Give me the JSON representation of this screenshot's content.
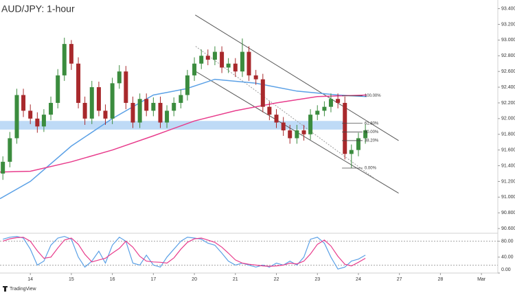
{
  "chart_data": [
    {
      "type": "candlestick",
      "title": "AUD/JPY: 1-hour",
      "brand": "TradingView",
      "up_color": "#3b8c3e",
      "down_color": "#a8292c",
      "x": [
        0.33,
        0.5,
        0.67,
        0.83,
        1.0,
        1.17,
        1.33,
        1.5,
        1.67,
        1.83,
        2.0,
        2.17,
        2.33,
        2.5,
        2.67,
        2.83,
        3.0,
        3.17,
        3.33,
        3.5,
        3.67,
        3.83,
        4.0,
        4.17,
        4.33,
        4.5,
        4.67,
        4.83,
        5.0,
        5.17,
        5.33,
        5.5,
        5.67,
        5.83,
        6.0,
        6.17,
        6.33,
        6.5,
        6.67,
        6.83,
        7.0,
        7.17,
        7.33,
        7.5,
        7.67,
        7.83,
        8.0,
        8.17,
        8.33,
        8.5,
        8.67,
        8.83,
        9.0,
        9.17
      ],
      "open": [
        91.3,
        91.45,
        91.75,
        92.3,
        92.1,
        92.0,
        91.9,
        92.05,
        92.2,
        92.55,
        92.95,
        92.7,
        92.2,
        92.0,
        92.4,
        92.1,
        92.0,
        92.45,
        92.6,
        92.2,
        91.95,
        92.25,
        92.1,
        92.2,
        91.95,
        92.1,
        92.2,
        92.3,
        92.55,
        92.7,
        92.8,
        92.75,
        92.85,
        92.65,
        92.7,
        92.6,
        92.85,
        92.55,
        92.5,
        92.15,
        92.05,
        91.95,
        91.85,
        91.75,
        91.85,
        91.8,
        92.05,
        92.1,
        92.15,
        92.25,
        92.2,
        91.55,
        91.6,
        91.75
      ],
      "high": [
        91.52,
        91.83,
        92.38,
        92.38,
        92.18,
        92.08,
        92.12,
        92.28,
        92.63,
        93.03,
        93.0,
        92.78,
        92.28,
        92.48,
        92.47,
        92.18,
        92.52,
        92.68,
        92.67,
        92.28,
        92.32,
        92.32,
        92.27,
        92.28,
        92.17,
        92.27,
        92.37,
        92.62,
        92.78,
        92.88,
        92.88,
        92.92,
        92.92,
        92.77,
        92.77,
        93.02,
        92.92,
        92.62,
        92.57,
        92.22,
        92.12,
        92.02,
        91.92,
        91.92,
        91.92,
        92.12,
        92.17,
        92.22,
        92.32,
        92.32,
        92.28,
        91.67,
        91.82,
        91.93
      ],
      "low": [
        91.22,
        91.38,
        91.68,
        92.02,
        91.93,
        91.82,
        91.83,
        91.98,
        92.13,
        92.48,
        92.62,
        92.13,
        91.92,
        91.93,
        92.03,
        91.92,
        91.93,
        92.38,
        92.12,
        91.88,
        91.88,
        92.03,
        92.03,
        91.88,
        91.88,
        92.03,
        92.13,
        92.23,
        92.48,
        92.63,
        92.68,
        92.68,
        92.58,
        92.58,
        92.53,
        92.53,
        92.48,
        92.43,
        92.08,
        91.98,
        91.88,
        91.78,
        91.68,
        91.68,
        91.72,
        91.73,
        91.98,
        92.03,
        92.08,
        92.13,
        91.48,
        91.37,
        91.52,
        91.68
      ],
      "close": [
        91.45,
        91.75,
        92.3,
        92.1,
        92.0,
        91.9,
        92.05,
        92.2,
        92.55,
        92.95,
        92.7,
        92.2,
        92.0,
        92.4,
        92.1,
        92.0,
        92.45,
        92.6,
        92.2,
        91.95,
        92.25,
        92.1,
        92.2,
        91.95,
        92.1,
        92.2,
        92.3,
        92.55,
        92.7,
        92.8,
        92.75,
        92.85,
        92.65,
        92.7,
        92.6,
        92.85,
        92.55,
        92.5,
        92.15,
        92.05,
        91.95,
        91.85,
        91.75,
        91.85,
        91.8,
        92.05,
        92.1,
        92.15,
        92.25,
        92.2,
        91.55,
        91.6,
        91.75,
        91.85
      ],
      "series": [
        {
          "color": "#5aa0e6",
          "x": [
            0.26,
            1.0,
            2.0,
            3.0,
            4.0,
            4.8,
            5.5,
            6.5,
            7.5,
            8.5,
            9.2
          ],
          "values": [
            90.98,
            91.2,
            91.65,
            92.0,
            92.3,
            92.38,
            92.5,
            92.45,
            92.35,
            92.3,
            92.28
          ]
        },
        {
          "color": "#e83c8c",
          "x": [
            0.26,
            1.0,
            2.0,
            3.0,
            4.0,
            5.0,
            6.0,
            7.0,
            8.0,
            9.2
          ],
          "values": [
            91.32,
            91.33,
            91.45,
            91.6,
            91.78,
            91.97,
            92.1,
            92.2,
            92.28,
            92.3
          ]
        }
      ],
      "channel": [
        {
          "x": [
            5.02,
            9.98
          ],
          "values": [
            93.32,
            91.72
          ]
        },
        {
          "x": [
            5.0,
            9.98
          ],
          "values": [
            92.61,
            91.05
          ]
        }
      ],
      "midline": {
        "x": [
          5.03,
          9.44
        ],
        "values": [
          92.92,
          91.22
        ]
      },
      "zone": {
        "x": [
          0.26,
          8.72
        ],
        "values": [
          91.86,
          91.97
        ],
        "color": "#b3d4f5"
      },
      "fib_x": [
        8.6,
        9.1
      ],
      "fib_levels": [
        {
          "value": 92.29,
          "label": "100.00%"
        },
        {
          "value": 91.94,
          "label": "61.80%"
        },
        {
          "value": 91.83,
          "label": "50.00%"
        },
        {
          "value": 91.72,
          "label": "38.20%"
        },
        {
          "value": 91.37,
          "label": "0.00%"
        }
      ],
      "xlim": [
        0.26,
        12.4
      ],
      "xticks": [
        {
          "value": 1,
          "label": "14"
        },
        {
          "value": 2,
          "label": "15"
        },
        {
          "value": 3,
          "label": "16"
        },
        {
          "value": 4,
          "label": "17"
        },
        {
          "value": 5,
          "label": "20"
        },
        {
          "value": 6,
          "label": "21"
        },
        {
          "value": 7,
          "label": "22"
        },
        {
          "value": 8,
          "label": "23"
        },
        {
          "value": 9,
          "label": "24"
        },
        {
          "value": 10,
          "label": "27"
        },
        {
          "value": 11,
          "label": "28"
        },
        {
          "value": 12,
          "label": "Mar"
        }
      ],
      "ylim": [
        90.54,
        93.51
      ],
      "yticks": [
        {
          "value": 93.4,
          "label": "93.400"
        },
        {
          "value": 93.2,
          "label": "93.200"
        },
        {
          "value": 93.0,
          "label": "93.000"
        },
        {
          "value": 92.8,
          "label": "92.800"
        },
        {
          "value": 92.6,
          "label": "92.600"
        },
        {
          "value": 92.4,
          "label": "92.400"
        },
        {
          "value": 92.2,
          "label": "92.200"
        },
        {
          "value": 92.0,
          "label": "92.000"
        },
        {
          "value": 91.8,
          "label": "91.800"
        },
        {
          "value": 91.6,
          "label": "91.600"
        },
        {
          "value": 91.4,
          "label": "91.400"
        },
        {
          "value": 91.2,
          "label": "91.200"
        },
        {
          "value": 91.0,
          "label": "91.000"
        },
        {
          "value": 90.8,
          "label": "90.800"
        },
        {
          "value": 90.6,
          "label": "90.600"
        }
      ]
    },
    {
      "type": "line",
      "x": [
        0.33,
        0.5,
        0.67,
        0.83,
        1.0,
        1.17,
        1.33,
        1.5,
        1.67,
        1.83,
        2.0,
        2.17,
        2.33,
        2.5,
        2.67,
        2.83,
        3.0,
        3.17,
        3.33,
        3.5,
        3.67,
        3.83,
        4.0,
        4.17,
        4.33,
        4.5,
        4.67,
        4.83,
        5.0,
        5.17,
        5.33,
        5.5,
        5.67,
        5.83,
        6.0,
        6.17,
        6.33,
        6.5,
        6.67,
        6.83,
        7.0,
        7.17,
        7.33,
        7.5,
        7.67,
        7.83,
        8.0,
        8.17,
        8.33,
        8.5,
        8.67,
        8.83,
        9.0,
        9.17
      ],
      "series": [
        {
          "color": "#5aa0e6",
          "values": [
            85,
            90,
            92,
            88,
            60,
            20,
            30,
            70,
            88,
            92,
            85,
            40,
            15,
            30,
            55,
            25,
            70,
            90,
            80,
            25,
            20,
            45,
            20,
            15,
            40,
            60,
            80,
            90,
            88,
            85,
            75,
            70,
            50,
            30,
            20,
            25,
            20,
            15,
            20,
            15,
            25,
            20,
            30,
            20,
            40,
            85,
            90,
            75,
            40,
            10,
            15,
            30,
            35,
            45
          ]
        },
        {
          "color": "#e83c8c",
          "values": [
            80,
            86,
            89,
            90,
            80,
            56,
            37,
            40,
            63,
            83,
            88,
            72,
            47,
            28,
            33,
            37,
            50,
            62,
            80,
            65,
            42,
            30,
            28,
            27,
            25,
            38,
            60,
            77,
            86,
            88,
            83,
            77,
            65,
            50,
            33,
            25,
            22,
            20,
            18,
            17,
            18,
            20,
            25,
            23,
            30,
            48,
            72,
            83,
            68,
            42,
            22,
            18,
            27,
            37
          ]
        }
      ],
      "levels": [
        80,
        20
      ],
      "xlim": [
        0.26,
        12.4
      ],
      "ylim": [
        0,
        100
      ],
      "yticks": [
        {
          "value": 80,
          "label": "80.00"
        },
        {
          "value": 40,
          "label": "40.00"
        },
        {
          "value": 0,
          "label": "0.00"
        }
      ]
    }
  ]
}
